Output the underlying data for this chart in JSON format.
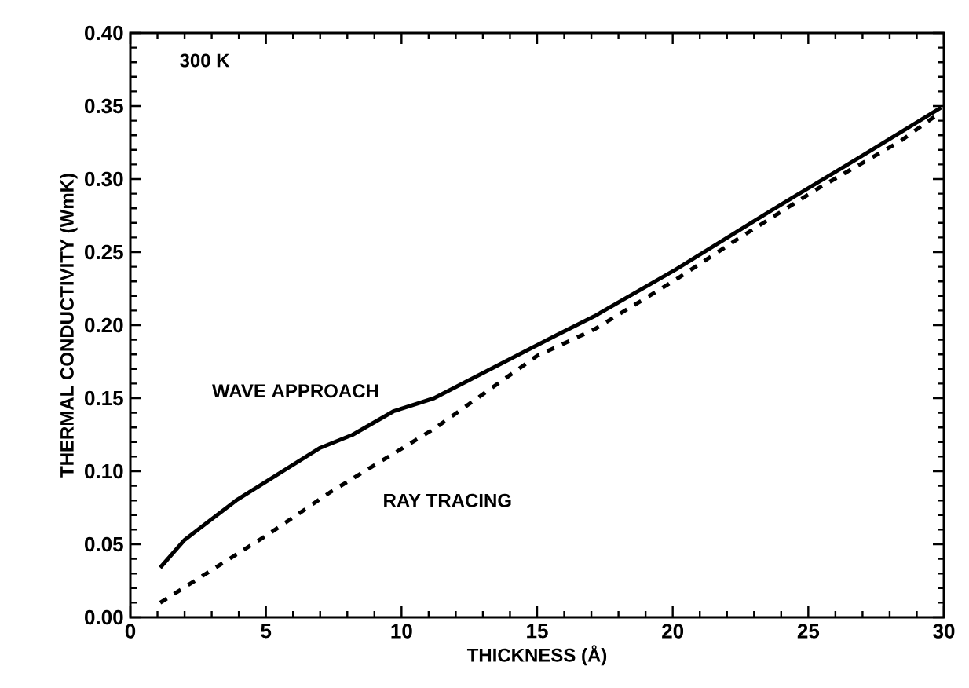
{
  "chart_data": {
    "type": "line",
    "xlabel": "THICKNESS (Å)",
    "ylabel": "THERMAL CONDUCTIVITY (WmK)",
    "annotations": [
      "300 K"
    ],
    "xlim": [
      0,
      30
    ],
    "xticks": [
      0,
      5,
      10,
      15,
      20,
      25,
      30
    ],
    "ylim": [
      0,
      0.4
    ],
    "yticks": [
      {
        "value": 0,
        "label": "0.00"
      },
      {
        "value": 0.05,
        "label": "0.05"
      },
      {
        "value": 0.1,
        "label": "0.10"
      },
      {
        "value": 0.15,
        "label": "0.15"
      },
      {
        "value": 0.2,
        "label": "0.20"
      },
      {
        "value": 0.25,
        "label": "0.25"
      },
      {
        "value": 0.3,
        "label": "0.30"
      },
      {
        "value": 0.35,
        "label": "0.35"
      },
      {
        "value": 0.4,
        "label": "0.40"
      }
    ],
    "grid": false,
    "legend": false,
    "series": [
      {
        "name": "WAVE APPROACH",
        "color": "#000000",
        "line_style": "solid",
        "x": [
          1.1,
          2.0,
          3.9,
          7.0,
          8.2,
          9.7,
          11.2,
          15.7,
          17.1,
          20.1,
          23.5,
          26.9,
          29.9
        ],
        "values": [
          0.034,
          0.053,
          0.08,
          0.116,
          0.125,
          0.141,
          0.15,
          0.193,
          0.206,
          0.238,
          0.277,
          0.315,
          0.349
        ]
      },
      {
        "name": "RAY TRACING",
        "color": "#000000",
        "line_style": "dashed",
        "x": [
          1.1,
          5.1,
          7.4,
          11.2,
          15.0,
          17.1,
          20.1,
          22.4,
          25.4,
          28.4,
          29.9
        ],
        "values": [
          0.01,
          0.057,
          0.086,
          0.129,
          0.179,
          0.197,
          0.231,
          0.259,
          0.294,
          0.326,
          0.346
        ]
      }
    ]
  }
}
